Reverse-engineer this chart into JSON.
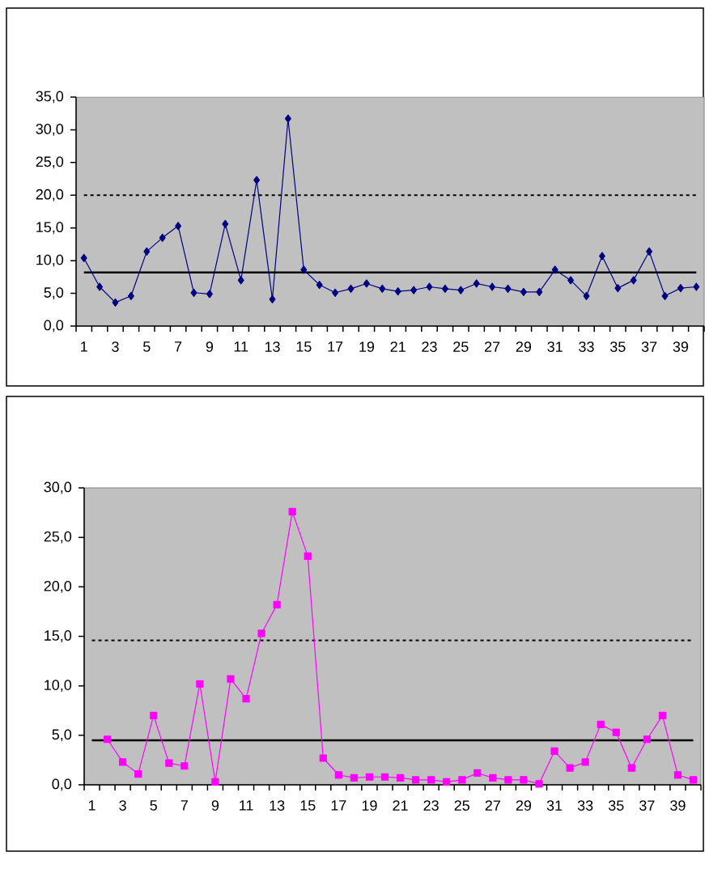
{
  "chart_data": [
    {
      "type": "line",
      "categories": [
        "1",
        null,
        "3",
        null,
        "5",
        null,
        "7",
        null,
        "9",
        null,
        "11",
        null,
        "13",
        null,
        "15",
        null,
        "17",
        null,
        "19",
        null,
        "21",
        null,
        "23",
        null,
        "25",
        null,
        "27",
        null,
        "29",
        null,
        "31",
        null,
        "33",
        null,
        "35",
        null,
        "37",
        null,
        "39",
        null
      ],
      "series": [
        {
          "color": "#000080",
          "values": [
            10.4,
            6.0,
            3.6,
            4.6,
            11.4,
            13.5,
            15.3,
            5.1,
            4.9,
            15.6,
            7.0,
            22.3,
            4.1,
            31.7,
            8.6,
            6.3,
            5.1,
            5.7,
            6.5,
            5.7,
            5.3,
            5.5,
            6.0,
            5.7,
            5.5,
            6.5,
            6.0,
            5.7,
            5.2,
            5.2,
            8.6,
            7.0,
            4.6,
            10.7,
            5.8,
            7.0,
            11.4,
            4.6,
            5.8,
            6.0
          ]
        }
      ],
      "marker": "diamond",
      "ylim": [
        0,
        35
      ],
      "yticks": [
        {
          "value": 0,
          "label": "0,0"
        },
        {
          "value": 5,
          "label": "5,0"
        },
        {
          "value": 10,
          "label": "10,0"
        },
        {
          "value": 15,
          "label": "15,0"
        },
        {
          "value": 20,
          "label": "20,0"
        },
        {
          "value": 25,
          "label": "25,0"
        },
        {
          "value": 30,
          "label": "30,0"
        },
        {
          "value": 35,
          "label": "35,0"
        }
      ],
      "ref_lines": [
        {
          "axis": "y",
          "value": 8.2,
          "color": "#000000",
          "line_style": "solid"
        },
        {
          "axis": "y",
          "value": 20.0,
          "color": "#000000",
          "line_style": "dotted"
        }
      ]
    },
    {
      "type": "line",
      "categories": [
        "1",
        null,
        "3",
        null,
        "5",
        null,
        "7",
        null,
        "9",
        null,
        "11",
        null,
        "13",
        null,
        "15",
        null,
        "17",
        null,
        "19",
        null,
        "21",
        null,
        "23",
        null,
        "25",
        null,
        "27",
        null,
        "29",
        null,
        "31",
        null,
        "33",
        null,
        "35",
        null,
        "37",
        null,
        "39",
        null
      ],
      "series": [
        {
          "color": "#ff00ff",
          "values": [
            null,
            4.6,
            2.3,
            1.1,
            7.0,
            2.2,
            1.9,
            10.2,
            0.3,
            10.7,
            8.7,
            15.3,
            18.2,
            27.6,
            23.1,
            2.7,
            1.0,
            0.7,
            0.8,
            0.8,
            0.7,
            0.5,
            0.5,
            0.3,
            0.5,
            1.2,
            0.7,
            0.5,
            0.5,
            0.1,
            3.4,
            1.7,
            2.3,
            6.1,
            5.3,
            1.7,
            4.6,
            7.0,
            1.0,
            0.5
          ]
        }
      ],
      "marker": "square",
      "ylim": [
        0,
        30
      ],
      "yticks": [
        {
          "value": 0,
          "label": "0,0"
        },
        {
          "value": 5,
          "label": "5,0"
        },
        {
          "value": 10,
          "label": "10,0"
        },
        {
          "value": 15,
          "label": "15,0"
        },
        {
          "value": 20,
          "label": "20,0"
        },
        {
          "value": 25,
          "label": "25,0"
        },
        {
          "value": 30,
          "label": "30,0"
        }
      ],
      "ref_lines": [
        {
          "axis": "y",
          "value": 4.5,
          "color": "#000000",
          "line_style": "solid"
        },
        {
          "axis": "y",
          "value": 14.6,
          "color": "#000000",
          "line_style": "dotted"
        }
      ]
    }
  ]
}
